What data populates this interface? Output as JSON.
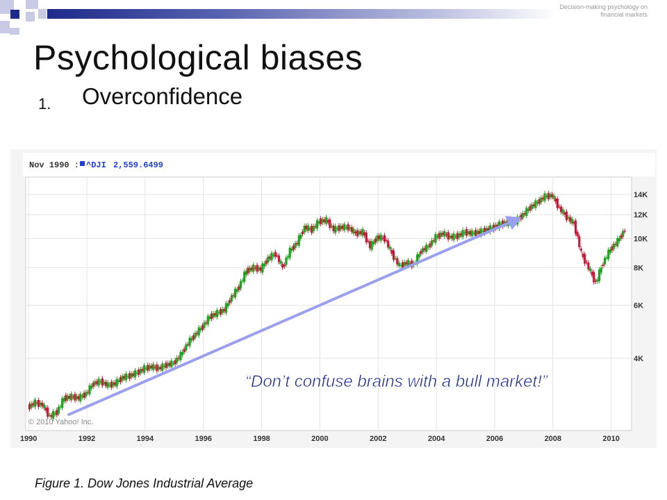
{
  "header": {
    "corner_note": "Decision-making psychology on financial markets"
  },
  "slide": {
    "title": "Psychological biases",
    "list_number": "1.",
    "list_item": "Overconfidence",
    "caption": "Figure 1. Dow Jones Industrial Average"
  },
  "chart_data": {
    "type": "line",
    "tooltip_date": "Nov 1990 :",
    "ticker": "^DJI",
    "tooltip_value": "2,559.6499",
    "copyright": "© 2010 Yahoo! Inc.",
    "annotation": "“Don’t confuse brains with a bull market!”",
    "x_ticks": [
      "1990",
      "1992",
      "1994",
      "1996",
      "1998",
      "2000",
      "2002",
      "2004",
      "2006",
      "2008",
      "2010"
    ],
    "y_ticks": [
      "4K",
      "6K",
      "8K",
      "10K",
      "12K",
      "14K"
    ],
    "y_tick_values": [
      4000,
      6000,
      8000,
      10000,
      12000,
      14000
    ],
    "y_scale": "log",
    "xlim": [
      1989.9,
      2010.7
    ],
    "ylim": [
      2300,
      16000
    ],
    "grid": true,
    "up_color": "#1fa31f",
    "down_color": "#c41a3a",
    "arrow_color": "#9aa0ee",
    "series": [
      {
        "x": [
          1990.0,
          1990.25,
          1990.5,
          1990.75,
          1991.0,
          1991.25,
          1991.5,
          1991.75,
          1992.0,
          1992.25,
          1992.5,
          1992.75,
          1993.0,
          1993.25,
          1993.5,
          1993.75,
          1994.0,
          1994.25,
          1994.5,
          1994.75,
          1995.0,
          1995.25,
          1995.5,
          1995.75,
          1996.0,
          1996.25,
          1996.5,
          1996.75,
          1997.0,
          1997.25,
          1997.5,
          1997.75,
          1998.0,
          1998.25,
          1998.5,
          1998.75,
          1999.0,
          1999.25,
          1999.5,
          1999.75,
          2000.0,
          2000.25,
          2000.5,
          2000.75,
          2001.0,
          2001.25,
          2001.5,
          2001.75,
          2002.0,
          2002.25,
          2002.5,
          2002.75,
          2003.0,
          2003.25,
          2003.5,
          2003.75,
          2004.0,
          2004.25,
          2004.5,
          2004.75,
          2005.0,
          2005.25,
          2005.5,
          2005.75,
          2006.0,
          2006.25,
          2006.5,
          2006.75,
          2007.0,
          2007.25,
          2007.5,
          2007.75,
          2008.0,
          2008.25,
          2008.5,
          2008.75,
          2009.0,
          2009.25,
          2009.5,
          2009.75,
          2010.0,
          2010.25,
          2010.5
        ],
        "values": [
          2750,
          2850,
          2800,
          2560,
          2650,
          2950,
          2980,
          2950,
          3050,
          3300,
          3350,
          3250,
          3300,
          3450,
          3500,
          3580,
          3700,
          3750,
          3700,
          3800,
          3850,
          4100,
          4500,
          4800,
          5100,
          5500,
          5650,
          5800,
          6400,
          6900,
          7800,
          8000,
          7900,
          8600,
          8900,
          8000,
          9100,
          9700,
          10900,
          10700,
          11400,
          11500,
          10700,
          10900,
          10900,
          10400,
          10500,
          9400,
          10100,
          10000,
          8900,
          8100,
          8300,
          8200,
          9100,
          9400,
          10100,
          10400,
          10100,
          10200,
          10500,
          10400,
          10500,
          10700,
          10900,
          11200,
          11300,
          11400,
          12000,
          12700,
          13200,
          13800,
          13900,
          12600,
          11800,
          11200,
          8900,
          8000,
          7100,
          8300,
          9200,
          9800,
          10700
        ]
      }
    ]
  }
}
